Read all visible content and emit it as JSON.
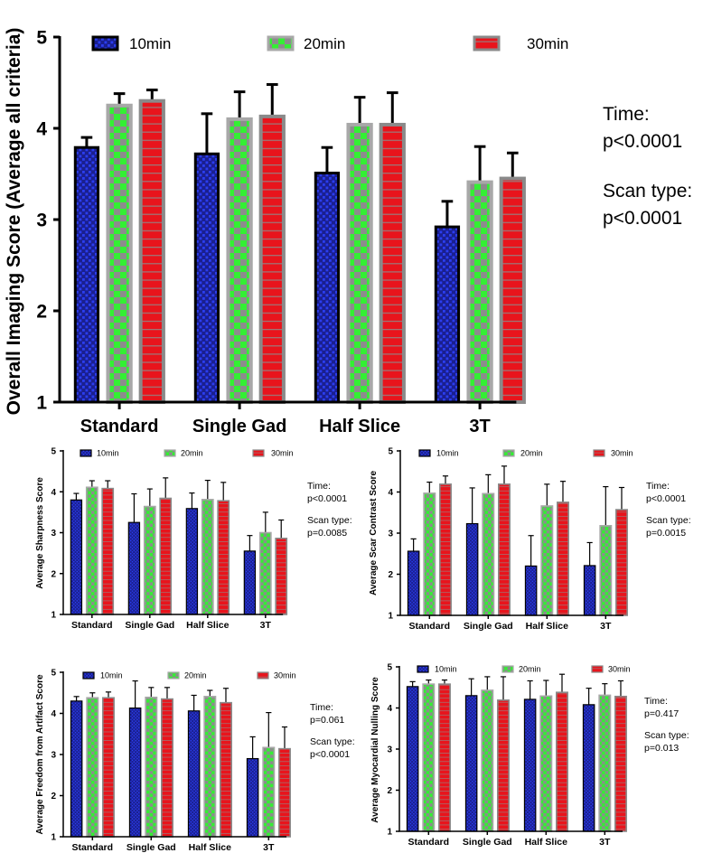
{
  "chart_data": [
    {
      "id": "overall",
      "type": "bar",
      "ylabel": "Overall Imaging Score (Average all criteria)",
      "categories": [
        "Standard",
        "Single Gad",
        "Half Slice",
        "3T"
      ],
      "ylim": [
        1,
        5
      ],
      "yticks": [
        1,
        2,
        3,
        4,
        5
      ],
      "legend_position": "top",
      "series": [
        {
          "name": "10min",
          "values": [
            3.79,
            3.72,
            3.51,
            2.92
          ],
          "err": [
            0.11,
            0.44,
            0.28,
            0.28
          ]
        },
        {
          "name": "20min",
          "values": [
            4.25,
            4.1,
            4.04,
            3.41
          ],
          "err": [
            0.13,
            0.3,
            0.3,
            0.39
          ]
        },
        {
          "name": "30min",
          "values": [
            4.3,
            4.13,
            4.04,
            3.45
          ],
          "err": [
            0.12,
            0.35,
            0.35,
            0.28
          ]
        }
      ],
      "annotations": [
        "Time:",
        "p<0.0001",
        "Scan type:",
        "p<0.0001"
      ]
    },
    {
      "id": "sharpness",
      "type": "bar",
      "ylabel": "Average Sharpness Score",
      "categories": [
        "Standard",
        "Single Gad",
        "Half Slice",
        "3T"
      ],
      "ylim": [
        1,
        5
      ],
      "yticks": [
        1,
        2,
        3,
        4,
        5
      ],
      "legend_position": "top",
      "series": [
        {
          "name": "10min",
          "values": [
            3.8,
            3.25,
            3.59,
            2.55
          ],
          "err": [
            0.16,
            0.7,
            0.38,
            0.38
          ]
        },
        {
          "name": "20min",
          "values": [
            4.11,
            3.64,
            3.81,
            3.0
          ],
          "err": [
            0.16,
            0.43,
            0.47,
            0.5
          ]
        },
        {
          "name": "30min",
          "values": [
            4.08,
            3.84,
            3.78,
            2.86
          ],
          "err": [
            0.19,
            0.5,
            0.45,
            0.45
          ]
        }
      ],
      "annotations": [
        "Time:",
        "p<0.0001",
        "Scan type:",
        "p=0.0085"
      ]
    },
    {
      "id": "scar-contrast",
      "type": "bar",
      "ylabel": "Average Scar Contrast Score",
      "categories": [
        "Standard",
        "Single Gad",
        "Half Slice",
        "3T"
      ],
      "ylim": [
        1,
        5
      ],
      "yticks": [
        1,
        2,
        3,
        4,
        5
      ],
      "legend_position": "top",
      "series": [
        {
          "name": "10min",
          "values": [
            2.56,
            3.23,
            2.2,
            2.21
          ],
          "err": [
            0.3,
            0.87,
            0.74,
            0.56
          ]
        },
        {
          "name": "20min",
          "values": [
            3.97,
            3.96,
            3.66,
            3.18
          ],
          "err": [
            0.27,
            0.46,
            0.53,
            0.95
          ]
        },
        {
          "name": "30min",
          "values": [
            4.19,
            4.19,
            3.75,
            3.57
          ],
          "err": [
            0.2,
            0.44,
            0.51,
            0.54
          ]
        }
      ],
      "annotations": [
        "Time:",
        "p<0.0001",
        "Scan type:",
        "p=0.0015"
      ]
    },
    {
      "id": "artifact",
      "type": "bar",
      "ylabel": "Average Freedom from Artifact Score",
      "categories": [
        "Standard",
        "Single Gad",
        "Half Slice",
        "3T"
      ],
      "ylim": [
        1,
        5
      ],
      "yticks": [
        1,
        2,
        3,
        4,
        5
      ],
      "legend_position": "top",
      "series": [
        {
          "name": "10min",
          "values": [
            4.3,
            4.13,
            4.06,
            2.9
          ],
          "err": [
            0.11,
            0.66,
            0.38,
            0.53
          ]
        },
        {
          "name": "20min",
          "values": [
            4.38,
            4.39,
            4.41,
            3.17
          ],
          "err": [
            0.12,
            0.24,
            0.15,
            0.85
          ]
        },
        {
          "name": "30min",
          "values": [
            4.38,
            4.35,
            4.26,
            3.14
          ],
          "err": [
            0.14,
            0.28,
            0.35,
            0.53
          ]
        }
      ],
      "annotations": [
        "Time:",
        "p=0.061",
        "Scan type:",
        "p<0.0001"
      ]
    },
    {
      "id": "nulling",
      "type": "bar",
      "ylabel": "Average Myocardial Nulling Score",
      "categories": [
        "Standard",
        "Single Gad",
        "Half Slice",
        "3T"
      ],
      "ylim": [
        1,
        5
      ],
      "yticks": [
        1,
        2,
        3,
        4,
        5
      ],
      "legend_position": "top",
      "series": [
        {
          "name": "10min",
          "values": [
            4.52,
            4.3,
            4.21,
            4.08
          ],
          "err": [
            0.12,
            0.41,
            0.45,
            0.4
          ]
        },
        {
          "name": "20min",
          "values": [
            4.58,
            4.43,
            4.29,
            4.31
          ],
          "err": [
            0.1,
            0.33,
            0.38,
            0.28
          ]
        },
        {
          "name": "30min",
          "values": [
            4.58,
            4.19,
            4.38,
            4.28
          ],
          "err": [
            0.1,
            0.57,
            0.44,
            0.38
          ]
        }
      ],
      "annotations": [
        "Time:",
        "p=0.417",
        "Scan type:",
        "p=0.013"
      ]
    }
  ],
  "colors": {
    "s10": "#1a1f8f",
    "s10dot": "#2b3ef0",
    "s20": "#8c8c8c",
    "s20dot": "#33f033",
    "s30": "#e8141c",
    "s30line": "#9a7a7a",
    "frame20": "#a8a8a8",
    "frame30": "#8a8a8a"
  }
}
